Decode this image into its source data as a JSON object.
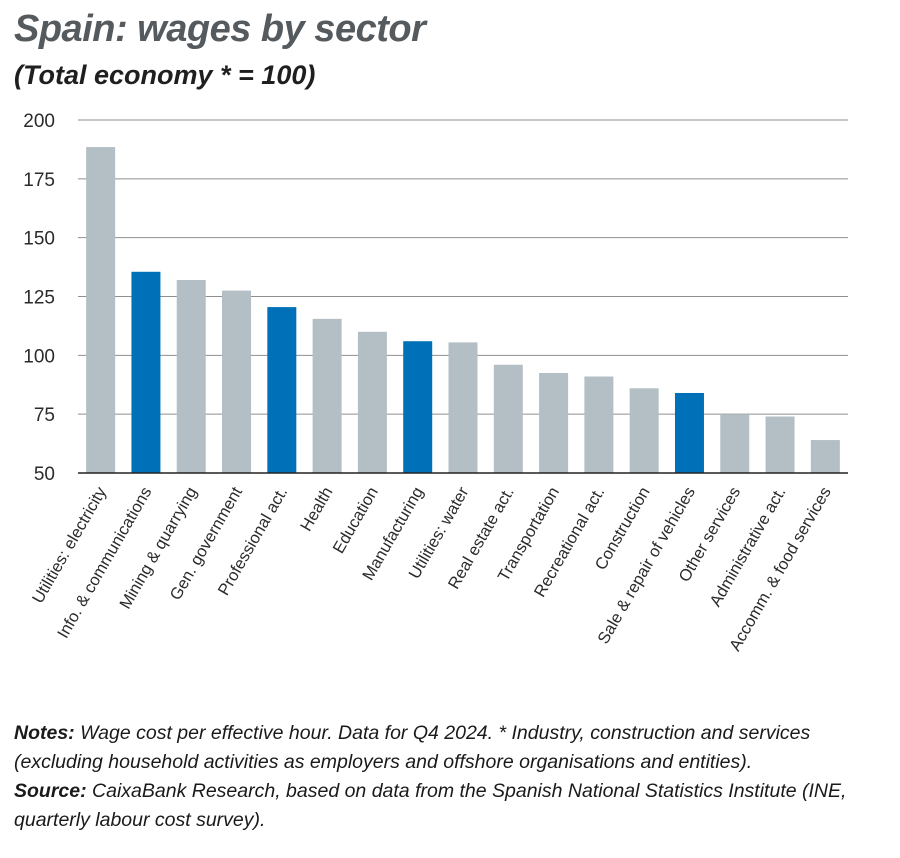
{
  "chart_data": {
    "type": "bar",
    "title": "Spain: wages by sector",
    "subtitle": "(Total economy * = 100)",
    "xlabel": "",
    "ylabel": "",
    "ylim": [
      50,
      200
    ],
    "yticks": [
      200,
      175,
      150,
      125,
      100,
      75,
      50
    ],
    "grid": true,
    "categories": [
      "Utilities: electricity",
      "Info. & communications",
      "Mining & quarrying",
      "Gen. government",
      "Professional act.",
      "Health",
      "Education",
      "Manufacturing",
      "Utilities: water",
      "Real estate act.",
      "Transportation",
      "Recreational act.",
      "Construction",
      "Sale & repair of vehicles",
      "Other services",
      "Administrative act.",
      "Accomm. & food services"
    ],
    "values": [
      188.5,
      135.5,
      132,
      127.5,
      120.5,
      115.5,
      110,
      106,
      105.5,
      96,
      92.5,
      91,
      86,
      84,
      75,
      74,
      64
    ],
    "highlighted": [
      false,
      true,
      false,
      false,
      true,
      false,
      false,
      true,
      false,
      false,
      false,
      false,
      false,
      true,
      false,
      false,
      false
    ],
    "colors": {
      "default": "#b3bfc4",
      "highlight": "#0071b8",
      "grid": "#8f8f8f"
    }
  },
  "notes": {
    "notes_label": "Notes:",
    "notes_text": " Wage cost per effective hour. Data for Q4 2024. * Industry, construction and services (excluding household activities as employers and offshore organisations and entities).",
    "source_label": "Source:",
    "source_text": " CaixaBank Research, based on data from the Spanish National Statistics Institute (INE, quarterly labour cost survey)."
  }
}
